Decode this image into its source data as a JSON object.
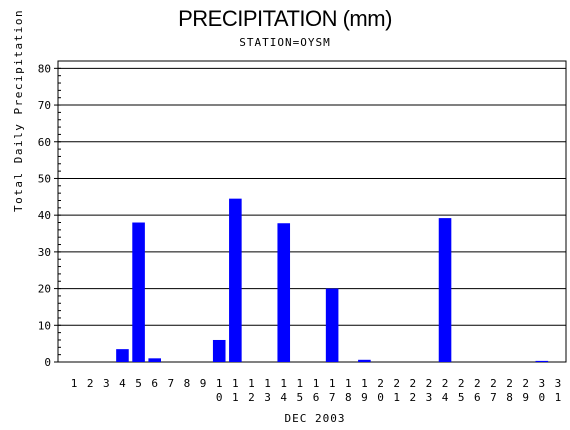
{
  "chart_data": {
    "type": "bar",
    "title": "PRECIPITATION (mm)",
    "subtitle": "STATION=OYSM",
    "xlabel": "DEC 2003",
    "ylabel": "Total Daily Precipitation (mm)",
    "ylim": [
      0,
      82
    ],
    "yticks": [
      0,
      10,
      20,
      30,
      40,
      50,
      60,
      70,
      80
    ],
    "grid": true,
    "bar_color": "#0000FF",
    "categories": [
      "1",
      "2",
      "3",
      "4",
      "5",
      "6",
      "7",
      "8",
      "9",
      "10",
      "11",
      "12",
      "13",
      "14",
      "15",
      "16",
      "17",
      "18",
      "19",
      "20",
      "21",
      "22",
      "23",
      "24",
      "25",
      "26",
      "27",
      "28",
      "29",
      "30",
      "31"
    ],
    "values": [
      0,
      0,
      0,
      3.5,
      38,
      1,
      0,
      0,
      0,
      6,
      44.5,
      0,
      0,
      37.8,
      0,
      0,
      20,
      0,
      0.6,
      0,
      0,
      0,
      0,
      39.2,
      0,
      0,
      0,
      0,
      0,
      0.3,
      0
    ]
  }
}
